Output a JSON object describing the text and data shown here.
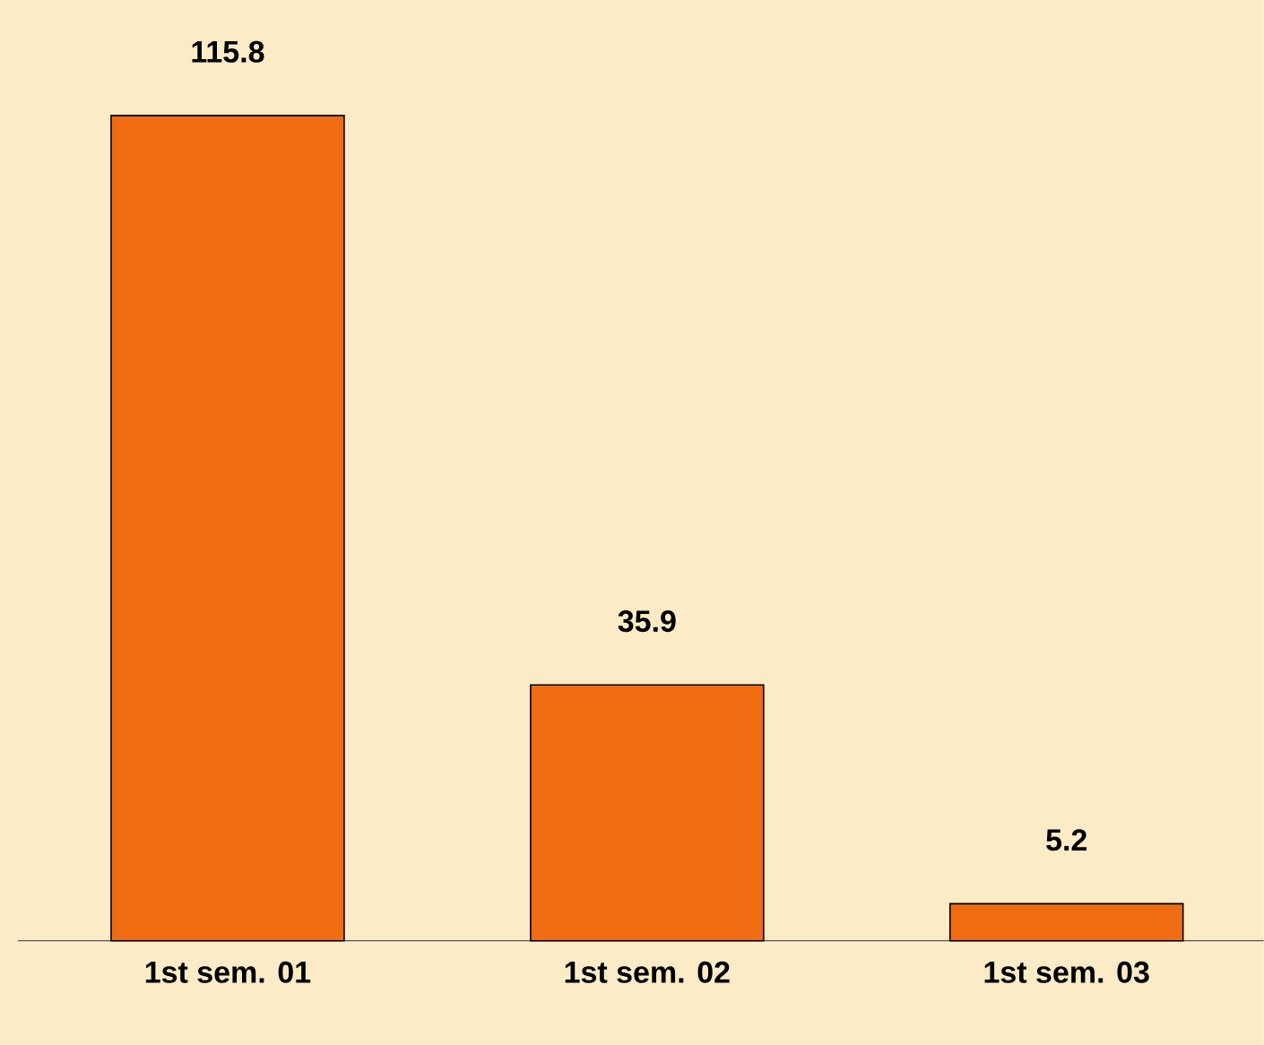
{
  "chart_data": {
    "type": "bar",
    "categories": [
      "1st sem. 01",
      "1st sem. 02",
      "1st sem. 03"
    ],
    "values": [
      115.8,
      35.9,
      5.2
    ],
    "color": "#f06c12",
    "data_labels": true
  }
}
